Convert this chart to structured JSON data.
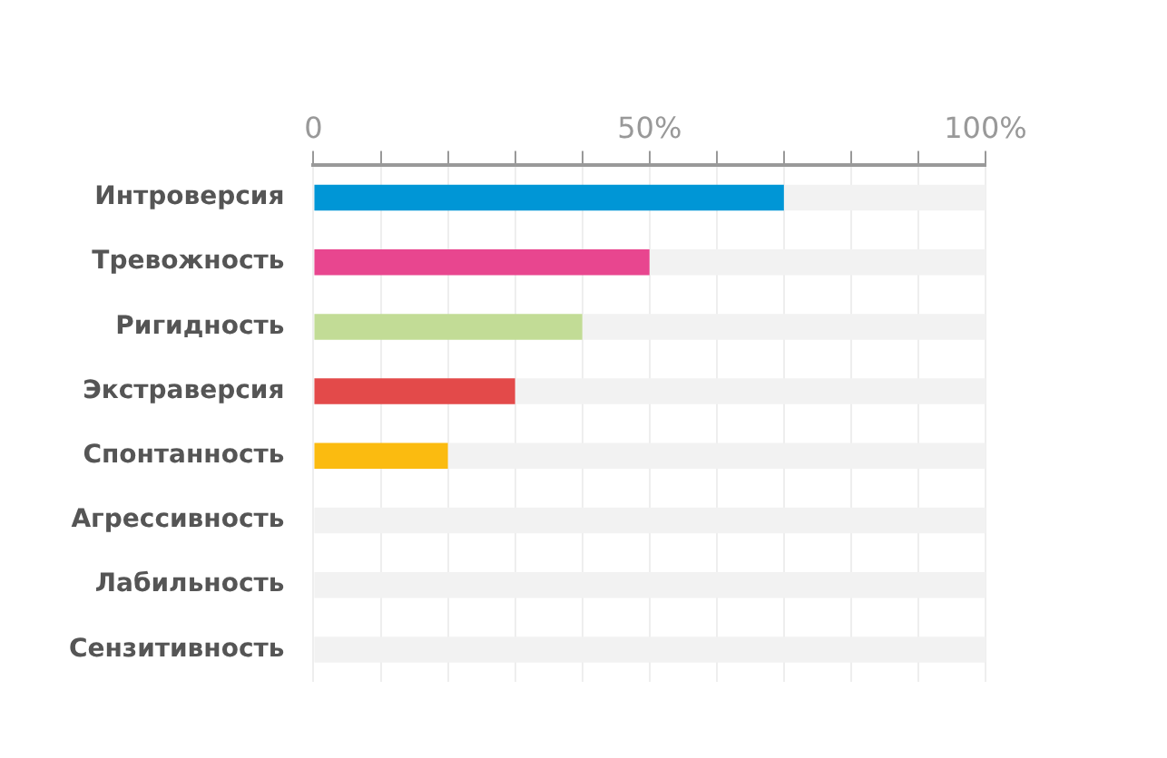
{
  "chart_data": {
    "type": "bar",
    "orientation": "horizontal",
    "categories": [
      "Интроверсия",
      "Тревожность",
      "Ригидность",
      "Экстраверсия",
      "Спонтанность",
      "Агрессивность",
      "Лабильность",
      "Сензитивность"
    ],
    "series": [
      {
        "values": [
          70,
          50,
          40,
          30,
          20,
          0,
          0,
          0
        ],
        "colors": [
          "#0096d6",
          "#e8468f",
          "#c2dc96",
          "#e34a4a",
          "#fbbb10",
          null,
          null,
          null
        ]
      },
      {
        "values": [
          30,
          50,
          60,
          70,
          80,
          100,
          100,
          100
        ],
        "color": "#f2f2f2"
      }
    ],
    "stacked": true,
    "xlim": [
      0,
      100
    ],
    "xticks": [
      0,
      {
        "value": 10,
        "label": null
      },
      {
        "value": 20,
        "label": null
      },
      {
        "value": 30,
        "label": null
      },
      {
        "value": 40,
        "label": null
      },
      {
        "value": 50,
        "label": "50%"
      },
      {
        "value": 60,
        "label": null
      },
      {
        "value": 70,
        "label": null
      },
      {
        "value": 80,
        "label": null
      },
      {
        "value": 90,
        "label": null
      },
      {
        "value": 100,
        "label": "100%"
      }
    ],
    "grid": "x",
    "legend": false
  }
}
